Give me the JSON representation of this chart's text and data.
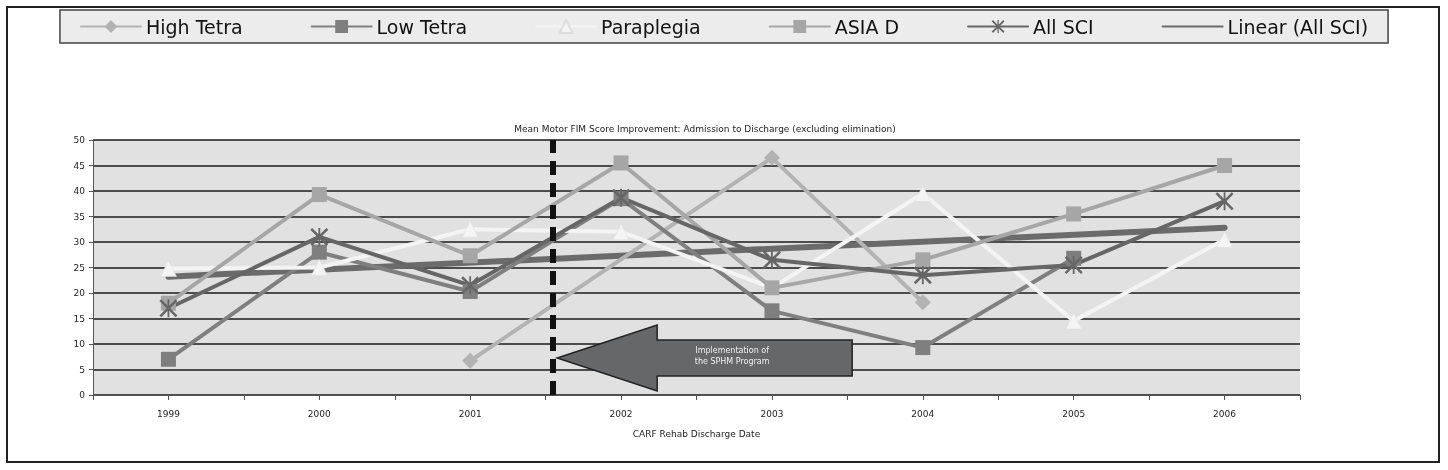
{
  "chart_data": {
    "type": "line",
    "title": "Mean Motor FIM Score Improvement: Admission to Discharge (excluding elimination)",
    "xlabel": "CARF Rehab Discharge Date",
    "x": [
      1999,
      2000,
      2001,
      2002,
      2003,
      2004,
      2005,
      2006
    ],
    "xlim": [
      1998.5,
      2006.5
    ],
    "xticks": [
      {
        "value": 1998.5,
        "label": null
      },
      1999,
      {
        "value": 1999.5,
        "label": null
      },
      2000,
      {
        "value": 2000.5,
        "label": null
      },
      2001,
      {
        "value": 2001.5,
        "label": null
      },
      2002,
      {
        "value": 2002.5,
        "label": null
      },
      2003,
      {
        "value": 2003.5,
        "label": null
      },
      2004,
      {
        "value": 2004.5,
        "label": null
      },
      2005,
      {
        "value": 2005.5,
        "label": null
      },
      2006,
      {
        "value": 2006.5,
        "label": null
      }
    ],
    "ylim": [
      0,
      50
    ],
    "yticks": [
      0,
      5,
      10,
      15,
      20,
      25,
      30,
      35,
      40,
      45,
      50
    ],
    "grid": "y",
    "legend": "top",
    "series": [
      {
        "name": "High Tetra",
        "color": "#b3b3b3",
        "marker": "diamond",
        "values": [
          null,
          null,
          6.7,
          null,
          46.5,
          18.2,
          null,
          null
        ]
      },
      {
        "name": "Low Tetra",
        "color": "#7f7f7f",
        "marker": "square",
        "values": [
          7,
          28,
          20.3,
          38.5,
          16.5,
          9.3,
          26.8,
          null
        ]
      },
      {
        "name": "Paraplegia",
        "color": "#f4f4f4",
        "marker": "triangle",
        "values": [
          24.8,
          25,
          32.5,
          32,
          21,
          39.5,
          14.5,
          30.5
        ]
      },
      {
        "name": "ASIA D",
        "color": "#a6a6a6",
        "marker": "square",
        "values": [
          18,
          39.3,
          27.3,
          45.5,
          21,
          26.5,
          35.5,
          45
        ]
      },
      {
        "name": "All SCI",
        "color": "#666666",
        "marker": "cross",
        "values": [
          17,
          31,
          21.5,
          38.7,
          26.5,
          23.5,
          25.5,
          38
        ]
      },
      {
        "name": "Linear (All SCI)",
        "color": "#6b6b6b",
        "marker": "none",
        "x": [
          1999,
          2006
        ],
        "values": [
          23.2,
          32.8
        ]
      }
    ],
    "ref_lines": [
      {
        "axis": "x",
        "value": 2001.55,
        "color": "#111111",
        "line_style": "dashed"
      }
    ],
    "annotations": [
      "Implementation of\nthe SPHM Program"
    ]
  }
}
